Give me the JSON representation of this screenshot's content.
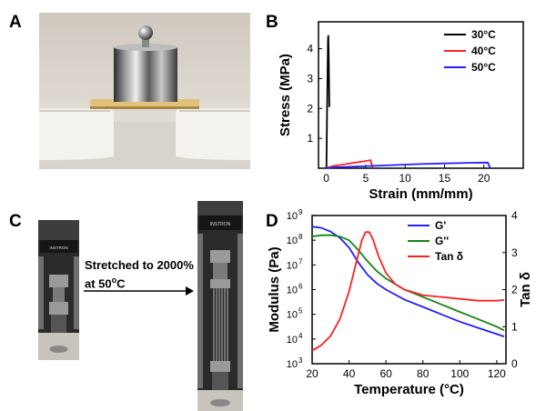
{
  "panels": {
    "a": "A",
    "b": "B",
    "c": "C",
    "d": "D"
  },
  "arrow_label_line1": "Stretched to 2000%",
  "arrow_label_line2_prefix": "at 50",
  "arrow_label_sup": "o",
  "arrow_label_line2_suffix": "C",
  "instron_text": "INSTRON",
  "colors": {
    "black": "#000000",
    "red": "#ff2020",
    "blue": "#1f1fff",
    "green": "#118811"
  },
  "chart_data": [
    {
      "type": "line",
      "xlabel": "Strain (mm/mm)",
      "ylabel": "Stress (MPa)",
      "xlim": [
        -1,
        25
      ],
      "ylim": [
        0,
        4.9
      ],
      "xticks": [
        0,
        5,
        10,
        15,
        20
      ],
      "yticks": [
        1,
        2,
        3,
        4
      ],
      "legend_position": "top-right",
      "series": [
        {
          "name": "30°C",
          "color": "#000000",
          "points": [
            [
              0,
              0
            ],
            [
              0.05,
              1.0
            ],
            [
              0.1,
              2.1
            ],
            [
              0.15,
              3.3
            ],
            [
              0.2,
              4.3
            ],
            [
              0.25,
              4.45
            ],
            [
              0.3,
              3.6
            ],
            [
              0.35,
              2.6
            ],
            [
              0.38,
              2.05
            ]
          ]
        },
        {
          "name": "40°C",
          "color": "#ff2020",
          "points": [
            [
              0,
              0
            ],
            [
              0.5,
              0.05
            ],
            [
              1,
              0.08
            ],
            [
              2,
              0.12
            ],
            [
              3,
              0.16
            ],
            [
              4,
              0.2
            ],
            [
              5,
              0.24
            ],
            [
              5.6,
              0.27
            ],
            [
              5.8,
              0.1
            ],
            [
              5.9,
              0.0
            ]
          ]
        },
        {
          "name": "50°C",
          "color": "#1f1fff",
          "points": [
            [
              0,
              0
            ],
            [
              1,
              0.03
            ],
            [
              3,
              0.05
            ],
            [
              6,
              0.08
            ],
            [
              9,
              0.11
            ],
            [
              12,
              0.14
            ],
            [
              15,
              0.16
            ],
            [
              18,
              0.18
            ],
            [
              20.5,
              0.19
            ],
            [
              20.8,
              0.0
            ]
          ]
        }
      ]
    },
    {
      "type": "line",
      "xlabel": "Temperature (°C)",
      "ylabel_left": "Modulus (Pa)",
      "ylabel_right": "Tan δ",
      "xlim": [
        20,
        125
      ],
      "ylim_left_log10": [
        3,
        9
      ],
      "ylim_right": [
        0,
        4
      ],
      "xticks": [
        20,
        40,
        60,
        80,
        100,
        120
      ],
      "yticks_left": [
        {
          "base": "10",
          "exp": "3"
        },
        {
          "base": "10",
          "exp": "4"
        },
        {
          "base": "10",
          "exp": "5"
        },
        {
          "base": "10",
          "exp": "6"
        },
        {
          "base": "10",
          "exp": "7"
        },
        {
          "base": "10",
          "exp": "8"
        },
        {
          "base": "10",
          "exp": "9"
        }
      ],
      "yticks_right": [
        0,
        1,
        2,
        3,
        4
      ],
      "legend_position": "top-right",
      "series": [
        {
          "name": "G'",
          "axis": "left",
          "color": "#1f1fff",
          "points": [
            [
              20,
              8.55
            ],
            [
              25,
              8.5
            ],
            [
              30,
              8.35
            ],
            [
              35,
              8.1
            ],
            [
              40,
              7.7
            ],
            [
              45,
              7.1
            ],
            [
              50,
              6.6
            ],
            [
              55,
              6.25
            ],
            [
              60,
              6.0
            ],
            [
              70,
              5.6
            ],
            [
              80,
              5.3
            ],
            [
              90,
              5.0
            ],
            [
              100,
              4.7
            ],
            [
              110,
              4.45
            ],
            [
              120,
              4.2
            ],
            [
              124,
              4.1
            ]
          ]
        },
        {
          "name": "G''",
          "axis": "left",
          "color": "#118811",
          "points": [
            [
              20,
              8.15
            ],
            [
              25,
              8.2
            ],
            [
              30,
              8.2
            ],
            [
              35,
              8.15
            ],
            [
              40,
              8.0
            ],
            [
              45,
              7.6
            ],
            [
              50,
              7.15
            ],
            [
              55,
              6.75
            ],
            [
              60,
              6.45
            ],
            [
              70,
              6.0
            ],
            [
              80,
              5.7
            ],
            [
              90,
              5.4
            ],
            [
              100,
              5.1
            ],
            [
              110,
              4.8
            ],
            [
              120,
              4.5
            ],
            [
              124,
              4.35
            ]
          ]
        },
        {
          "name": "Tan δ",
          "axis": "right",
          "color": "#ff2020",
          "points": [
            [
              20,
              0.35
            ],
            [
              25,
              0.5
            ],
            [
              30,
              0.75
            ],
            [
              35,
              1.2
            ],
            [
              40,
              1.95
            ],
            [
              44,
              2.75
            ],
            [
              47,
              3.35
            ],
            [
              49,
              3.55
            ],
            [
              51,
              3.55
            ],
            [
              53,
              3.35
            ],
            [
              56,
              2.9
            ],
            [
              60,
              2.45
            ],
            [
              65,
              2.15
            ],
            [
              70,
              2.0
            ],
            [
              80,
              1.85
            ],
            [
              90,
              1.8
            ],
            [
              100,
              1.75
            ],
            [
              110,
              1.7
            ],
            [
              120,
              1.7
            ],
            [
              124,
              1.72
            ]
          ]
        }
      ]
    }
  ]
}
